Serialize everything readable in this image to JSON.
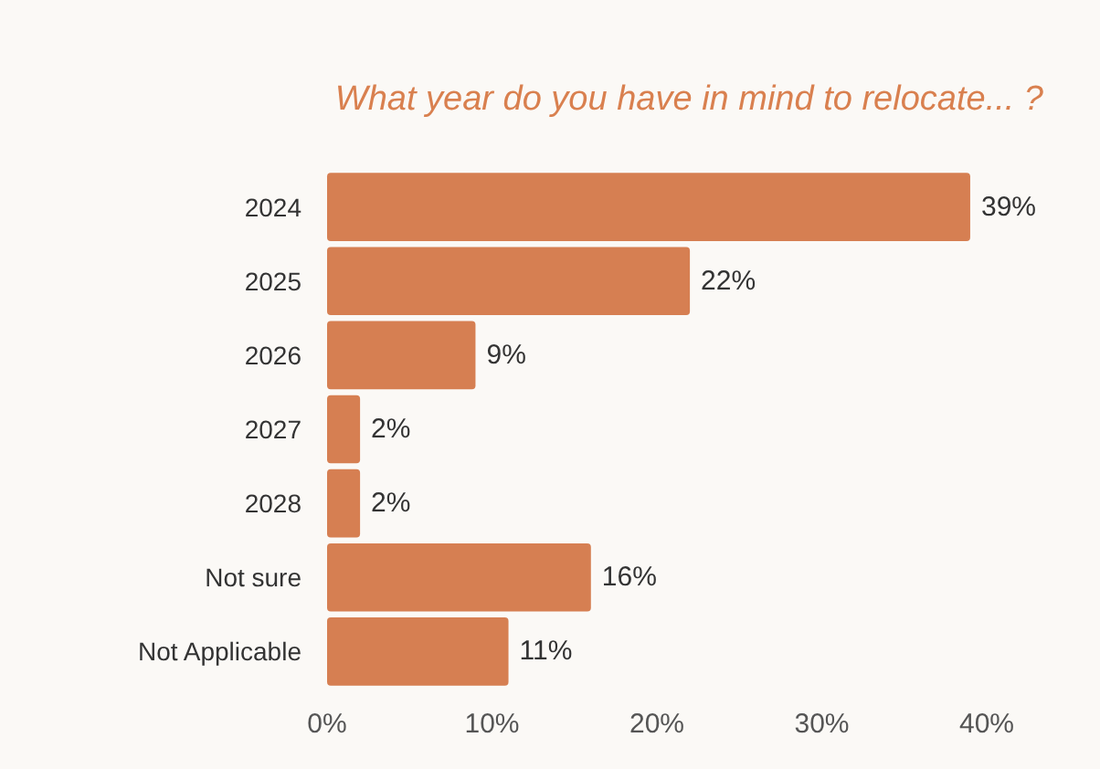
{
  "chart_data": {
    "type": "bar",
    "orientation": "horizontal",
    "title": "What year do you have in mind to relocate... ?",
    "categories": [
      "2024",
      "2025",
      "2026",
      "2027",
      "2028",
      "Not sure",
      "Not Applicable"
    ],
    "values": [
      39,
      22,
      9,
      2,
      2,
      16,
      11
    ],
    "value_labels": [
      "39%",
      "22%",
      "9%",
      "2%",
      "2%",
      "16%",
      "11%"
    ],
    "color": "#d67f52",
    "xlim": [
      0,
      40
    ],
    "xticks": [
      {
        "value": 0,
        "label": "0%"
      },
      {
        "value": 10,
        "label": "10%"
      },
      {
        "value": 20,
        "label": "20%"
      },
      {
        "value": 30,
        "label": "30%"
      },
      {
        "value": 40,
        "label": "40%"
      }
    ],
    "grid": false
  }
}
